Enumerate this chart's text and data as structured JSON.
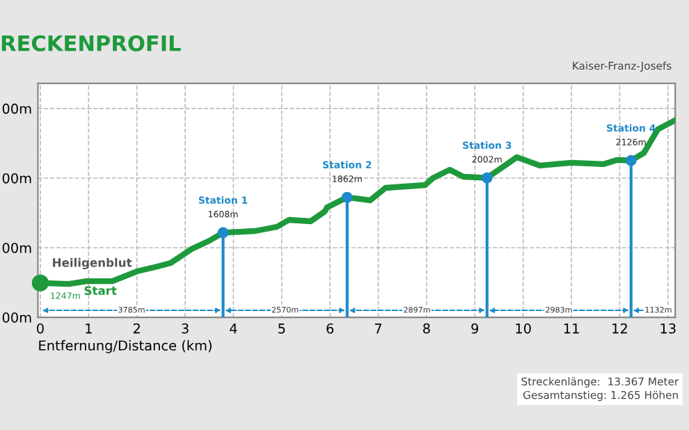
{
  "chart_data": {
    "type": "line",
    "title": "RECKENPROFIL",
    "xlabel": "Entfernung/Distance (km)",
    "xlim": [
      -0.05,
      13.15
    ],
    "xticks": [
      0,
      1,
      2,
      3,
      4,
      5,
      6,
      7,
      8,
      9,
      10,
      11,
      12,
      13
    ],
    "ylim": [
      1000,
      2680
    ],
    "yticks": [
      {
        "value": 1000,
        "label": "00m"
      },
      {
        "value": 1500,
        "label": "00m"
      },
      {
        "value": 2000,
        "label": "00m"
      },
      {
        "value": 2500,
        "label": "00m"
      }
    ],
    "grid": true,
    "legend": false,
    "line_style": "solid",
    "series": [
      {
        "color": "#1e9a3c",
        "x": [
          0,
          0.59,
          0.96,
          1.49,
          2.0,
          2.37,
          2.7,
          3.13,
          3.5,
          3.785,
          4.45,
          4.9,
          5.15,
          5.6,
          5.89,
          5.94,
          6.355,
          6.83,
          7.15,
          7.97,
          8.13,
          8.48,
          8.76,
          9.252,
          9.87,
          10.35,
          11.0,
          11.66,
          11.94,
          12.235,
          12.5,
          12.79,
          13.12
        ],
        "values": [
          1247,
          1240,
          1260,
          1260,
          1330,
          1360,
          1390,
          1490,
          1550,
          1608,
          1620,
          1650,
          1700,
          1690,
          1760,
          1790,
          1862,
          1840,
          1930,
          1950,
          2000,
          2060,
          2010,
          2002,
          2150,
          2090,
          2110,
          2100,
          2130,
          2126,
          2180,
          2350,
          2410
        ]
      },
      {
        "type": "scatter",
        "color": "#1e9a3c",
        "x": [
          0
        ],
        "values": [
          1247
        ],
        "value_labels": [
          "1247m"
        ]
      },
      {
        "type": "lollipop",
        "color": "#1f8ac9",
        "x": [
          3.785,
          6.355,
          9.252,
          12.235
        ],
        "values": [
          1608,
          1862,
          2002,
          2126
        ],
        "value_labels": [
          "1608m",
          "1862m",
          "2002m",
          "2126m"
        ]
      }
    ],
    "annotations": [
      {
        "text": "Station 1",
        "x": 3.785,
        "y": 1608
      },
      {
        "text": "Station 2",
        "x": 6.355,
        "y": 1862
      },
      {
        "text": "Station 3",
        "x": 9.252,
        "y": 2002
      },
      {
        "text": "Station 4",
        "x": 12.235,
        "y": 2126
      },
      "Start",
      {
        "text": "Heiligenblut",
        "x": 0,
        "y": 1247
      },
      "Kaiser-Franz-Josefs",
      {
        "text": "3785m",
        "x": 1.89,
        "y": 1050
      },
      {
        "text": "2570m",
        "x": 5.07,
        "y": 1050
      },
      {
        "text": "2897m",
        "x": 7.8,
        "y": 1050
      },
      {
        "text": "2983m",
        "x": 10.74,
        "y": 1050
      },
      {
        "text": "1132m",
        "x": 12.8,
        "y": 1050
      },
      "Streckenlänge:  13.367 Meter",
      "Gesamtanstieg: 1.265 Höhen"
    ]
  }
}
